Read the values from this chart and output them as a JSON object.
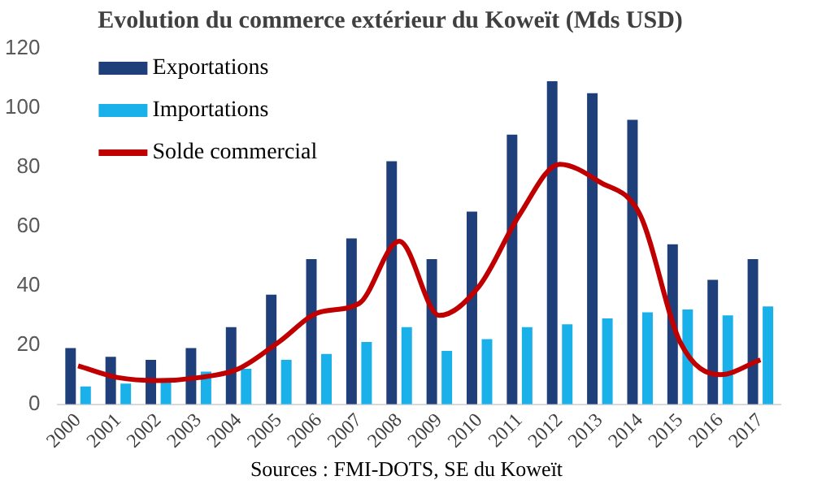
{
  "chart_data": {
    "type": "bar",
    "title": "Evolution du commerce extérieur du Koweït (Mds USD)",
    "categories": [
      "2000",
      "2001",
      "2002",
      "2003",
      "2004",
      "2005",
      "2006",
      "2007",
      "2008",
      "2009",
      "2010",
      "2011",
      "2012",
      "2013",
      "2014",
      "2015",
      "2016",
      "2017"
    ],
    "series": [
      {
        "name": "Exportations",
        "color": "#1f3f7a",
        "values": [
          19,
          16,
          15,
          19,
          26,
          37,
          49,
          56,
          82,
          49,
          65,
          91,
          109,
          105,
          96,
          54,
          42,
          49
        ]
      },
      {
        "name": "Importations",
        "color": "#1ab0ea",
        "values": [
          6,
          7,
          8,
          11,
          12,
          15,
          17,
          21,
          26,
          18,
          22,
          26,
          27,
          29,
          31,
          32,
          30,
          33
        ]
      },
      {
        "name": "Solde commercial",
        "type": "line",
        "color": "#c00000",
        "values": [
          13,
          9,
          8,
          9,
          12,
          21,
          31,
          34,
          55,
          30,
          40,
          64,
          81,
          75,
          64,
          21,
          10,
          15
        ]
      }
    ],
    "ylim": [
      0,
      120
    ],
    "yticks": [
      0,
      20,
      40,
      60,
      80,
      100,
      120
    ],
    "grid": false,
    "legend": "top left",
    "marker": "none",
    "annotations": [
      "Sources : FMI-DOTS, SE du Koweït"
    ]
  }
}
